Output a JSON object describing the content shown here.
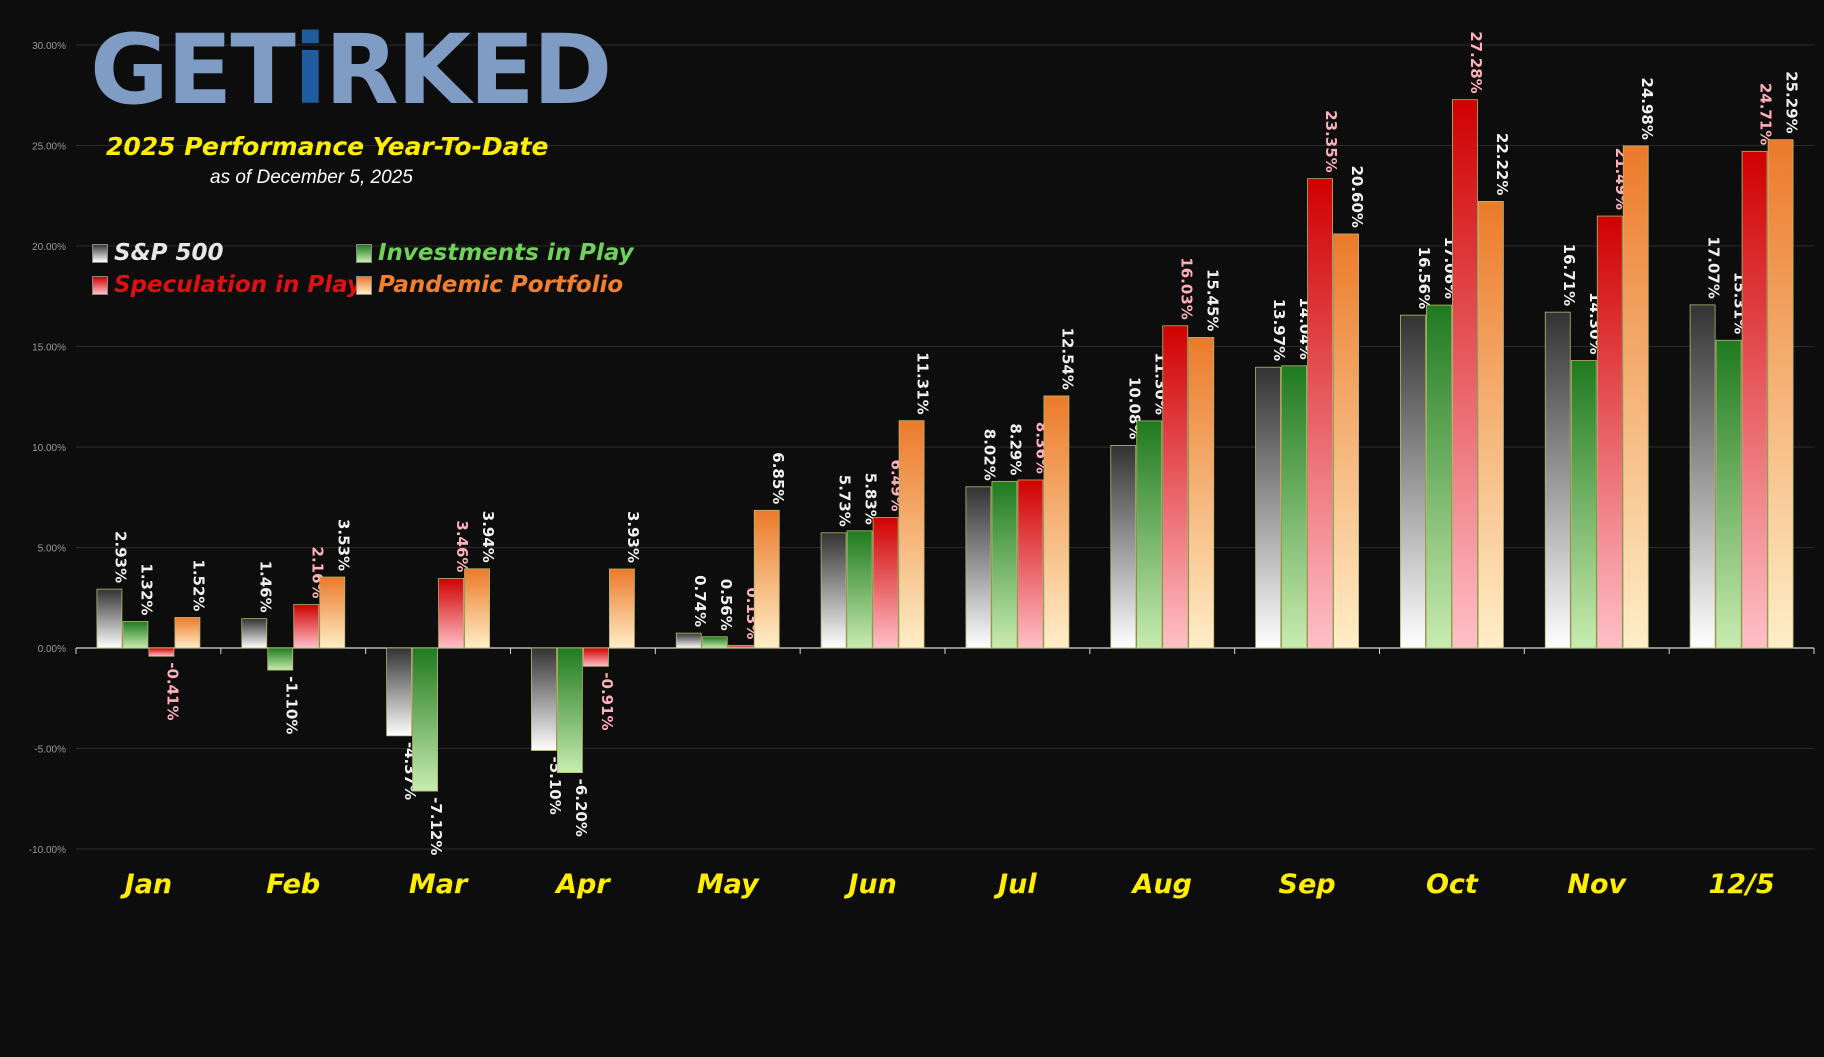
{
  "logo": {
    "part1": "GET",
    "part2": "i",
    "part3": "RKED"
  },
  "subtitle": "2025 Performance Year-To-Date",
  "as_of": "as of December 5, 2025",
  "colors": {
    "background": "#0d0d0d",
    "month_label": "#ffee00",
    "sp500": "#9a9a9a",
    "investments": "#2e9a2e",
    "speculation": "#e01010",
    "pandemic": "#f08030",
    "label_white": "#f0f0f0",
    "label_pink": "#ffb0b8"
  },
  "chart_data": {
    "type": "bar",
    "categories": [
      "Jan",
      "Feb",
      "Mar",
      "Apr",
      "May",
      "Jun",
      "Jul",
      "Aug",
      "Sep",
      "Oct",
      "Nov",
      "12/5"
    ],
    "series": [
      {
        "name": "S&P 500",
        "values": [
          2.93,
          1.46,
          -4.37,
          -5.1,
          0.74,
          5.73,
          8.02,
          10.08,
          13.97,
          16.56,
          16.71,
          17.07
        ],
        "labels": [
          "2.93%",
          "1.46%",
          "-4.37%",
          "-5.10%",
          "0.74%",
          "5.73%",
          "8.02%",
          "10.08%",
          "13.97%",
          "16.56%",
          "16.71%",
          "17.07%"
        ]
      },
      {
        "name": "Investments in Play",
        "values": [
          1.32,
          -1.1,
          -7.12,
          -6.2,
          0.56,
          5.83,
          8.29,
          11.3,
          14.04,
          17.06,
          14.3,
          15.31
        ],
        "labels": [
          "1.32%",
          "-1.10%",
          "-7.12%",
          "-6.20%",
          "0.56%",
          "5.83%",
          "8.29%",
          "11.30%",
          "14.04%",
          "17.06%",
          "14.30%",
          "15.31%"
        ]
      },
      {
        "name": "Speculation in Play",
        "values": [
          -0.41,
          2.16,
          3.46,
          -0.91,
          0.13,
          6.49,
          8.36,
          16.03,
          23.35,
          27.28,
          21.49,
          24.71
        ],
        "labels": [
          "-0.41%",
          "2.16%",
          "3.46%",
          "-0.91%",
          "0.13%",
          "6.49%",
          "8.36%",
          "16.03%",
          "23.35%",
          "27.28%",
          "21.49%",
          "24.71%"
        ]
      },
      {
        "name": "Pandemic Portfolio",
        "values": [
          1.52,
          3.53,
          3.94,
          3.93,
          6.85,
          11.31,
          12.54,
          15.45,
          20.6,
          22.22,
          24.98,
          25.29
        ],
        "labels": [
          "1.52%",
          "3.53%",
          "3.94%",
          "3.93%",
          "6.85%",
          "11.31%",
          "12.54%",
          "15.45%",
          "20.60%",
          "22.22%",
          "24.98%",
          "25.29%"
        ]
      }
    ],
    "yticks": [
      "30.00%",
      "25.00%",
      "20.00%",
      "15.00%",
      "10.00%",
      "5.00%",
      "0.00%",
      "-5.00%",
      "-10.00%"
    ],
    "ytick_values": [
      30,
      25,
      20,
      15,
      10,
      5,
      0,
      -5,
      -10
    ],
    "ylim": [
      -10,
      30
    ],
    "grid": true,
    "legend_position": "top-left"
  }
}
